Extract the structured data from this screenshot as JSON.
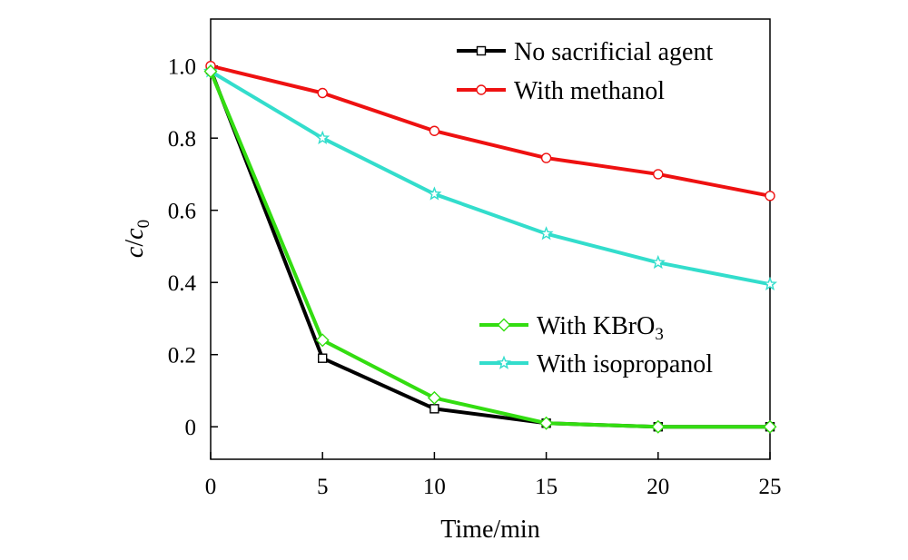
{
  "chart_data": {
    "type": "line",
    "xlabel": "Time/min",
    "ylabel": {
      "c1": "c",
      "slash": "/",
      "c2": "c",
      "sub": "0"
    },
    "x": [
      0,
      5,
      10,
      15,
      20,
      25
    ],
    "xlim": [
      0,
      25
    ],
    "ylim": [
      -0.09,
      1.13
    ],
    "x_ticks": [
      0,
      5,
      10,
      15,
      20,
      25
    ],
    "y_ticks": [
      0,
      0.2,
      0.4,
      0.6,
      0.8,
      1.0
    ],
    "x_tick_labels": [
      "0",
      "5",
      "10",
      "15",
      "20",
      "25"
    ],
    "y_tick_labels": [
      "0",
      "0.2",
      "0.4",
      "0.6",
      "0.8",
      "1.0"
    ],
    "grid": false,
    "series": [
      {
        "name": "No sacrificial agent",
        "label_main": "No sacrificial agent",
        "label_sub": "",
        "color": "#000000",
        "marker": "square",
        "values": [
          0.99,
          0.19,
          0.05,
          0.01,
          0.0,
          0.0
        ]
      },
      {
        "name": "With methanol",
        "label_main": "With methanol",
        "label_sub": "",
        "color": "#ee1111",
        "marker": "circle",
        "values": [
          1.0,
          0.925,
          0.82,
          0.745,
          0.7,
          0.64
        ]
      },
      {
        "name": "With KBrO3",
        "label_main": "With KBrO",
        "label_sub": "3",
        "color": "#33dd11",
        "marker": "diamond",
        "values": [
          0.985,
          0.24,
          0.08,
          0.01,
          0.0,
          0.0
        ]
      },
      {
        "name": "With isopropanol",
        "label_main": "With isopropanol",
        "label_sub": "",
        "color": "#33ddcc",
        "marker": "star",
        "values": [
          0.985,
          0.8,
          0.645,
          0.535,
          0.455,
          0.395
        ]
      }
    ],
    "legend": [
      {
        "series": 0,
        "position": "top-right"
      },
      {
        "series": 1,
        "position": "top-right"
      },
      {
        "series": 2,
        "position": "middle-right"
      },
      {
        "series": 3,
        "position": "middle-right"
      }
    ]
  }
}
